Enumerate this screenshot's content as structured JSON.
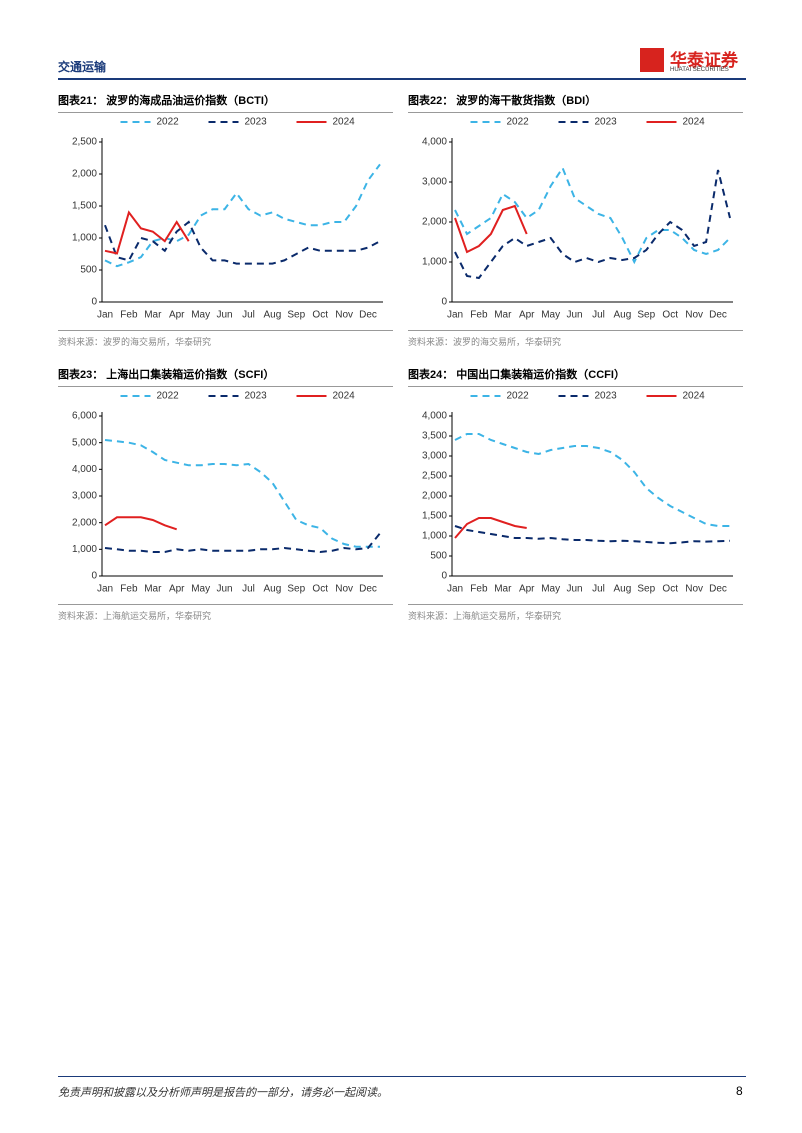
{
  "header": {
    "section": "交通运输",
    "logo": "华泰证券",
    "logo_en": "HUATAI SECURITIES"
  },
  "chart_data": [
    {
      "type": "line",
      "title": "图表21： 波罗的海成品油运价指数（BCTI）",
      "source": "资料来源：波罗的海交易所，华泰研究",
      "legend": "top",
      "grid": false,
      "categories": [
        "Jan",
        null,
        "Feb",
        null,
        "Mar",
        null,
        "Apr",
        null,
        "May",
        null,
        "Jun",
        null,
        "Jul",
        null,
        "Aug",
        null,
        "Sep",
        null,
        "Oct",
        null,
        "Nov",
        null,
        "Dec",
        null
      ],
      "ylim": [
        0,
        2500
      ],
      "yticks": [
        0,
        500,
        {
          "value": 1000,
          "label": "1,000"
        },
        {
          "value": 1500,
          "label": "1,500"
        },
        {
          "value": 2000,
          "label": "2,000"
        },
        {
          "value": 2500,
          "label": "2,500"
        }
      ],
      "series": [
        {
          "name": "2022",
          "color": "#3cb4e6",
          "style": "dashed",
          "values": [
            650,
            560,
            620,
            700,
            950,
            1000,
            950,
            1050,
            1350,
            1450,
            1450,
            1700,
            1450,
            1350,
            1400,
            1300,
            1250,
            1200,
            1200,
            1250,
            1250,
            1500,
            1900,
            2150
          ]
        },
        {
          "name": "2023",
          "color": "#0a2a6b",
          "style": "dashed",
          "values": [
            1200,
            700,
            650,
            1000,
            950,
            800,
            1100,
            1250,
            850,
            650,
            650,
            600,
            600,
            600,
            600,
            650,
            750,
            850,
            800,
            800,
            800,
            800,
            850,
            950
          ]
        },
        {
          "name": "2024",
          "color": "#e02020",
          "style": "solid",
          "values": [
            800,
            760,
            1400,
            1150,
            1100,
            950,
            1250,
            950,
            null,
            null,
            null,
            null,
            null,
            null,
            null,
            null,
            null,
            null,
            null,
            null,
            null,
            null,
            null,
            null
          ]
        }
      ]
    },
    {
      "type": "line",
      "title": "图表22： 波罗的海干散货指数（BDI）",
      "source": "资料来源：波罗的海交易所，华泰研究",
      "legend": "top",
      "grid": false,
      "categories": [
        "Jan",
        null,
        "Feb",
        null,
        "Mar",
        null,
        "Apr",
        null,
        "May",
        null,
        "Jun",
        null,
        "Jul",
        null,
        "Aug",
        null,
        "Sep",
        null,
        "Oct",
        null,
        "Nov",
        null,
        "Dec",
        null
      ],
      "ylim": [
        0,
        4000
      ],
      "yticks": [
        0,
        {
          "value": 1000,
          "label": "1,000"
        },
        {
          "value": 2000,
          "label": "2,000"
        },
        {
          "value": 3000,
          "label": "3,000"
        },
        {
          "value": 4000,
          "label": "4,000"
        }
      ],
      "series": [
        {
          "name": "2022",
          "color": "#3cb4e6",
          "style": "dashed",
          "values": [
            2300,
            1700,
            1900,
            2100,
            2700,
            2500,
            2100,
            2300,
            2900,
            3350,
            2600,
            2400,
            2200,
            2100,
            1600,
            1000,
            1600,
            1800,
            1800,
            1600,
            1300,
            1200,
            1300,
            1600
          ]
        },
        {
          "name": "2023",
          "color": "#0a2a6b",
          "style": "dashed",
          "values": [
            1250,
            650,
            600,
            1000,
            1400,
            1600,
            1400,
            1500,
            1600,
            1200,
            1000,
            1100,
            1000,
            1100,
            1050,
            1100,
            1300,
            1700,
            2000,
            1800,
            1400,
            1500,
            3300,
            2100
          ]
        },
        {
          "name": "2024",
          "color": "#e02020",
          "style": "solid",
          "values": [
            2100,
            1250,
            1400,
            1700,
            2300,
            2400,
            1700,
            null,
            null,
            null,
            null,
            null,
            null,
            null,
            null,
            null,
            null,
            null,
            null,
            null,
            null,
            null,
            null,
            null
          ]
        }
      ]
    },
    {
      "type": "line",
      "title": "图表23： 上海出口集装箱运价指数（SCFI）",
      "source": "资料来源：上海航运交易所，华泰研究",
      "legend": "top",
      "grid": false,
      "categories": [
        "Jan",
        null,
        "Feb",
        null,
        "Mar",
        null,
        "Apr",
        null,
        "May",
        null,
        "Jun",
        null,
        "Jul",
        null,
        "Aug",
        null,
        "Sep",
        null,
        "Oct",
        null,
        "Nov",
        null,
        "Dec",
        null
      ],
      "ylim": [
        0,
        6000
      ],
      "yticks": [
        0,
        {
          "value": 1000,
          "label": "1,000"
        },
        {
          "value": 2000,
          "label": "2,000"
        },
        {
          "value": 3000,
          "label": "3,000"
        },
        {
          "value": 4000,
          "label": "4,000"
        },
        {
          "value": 5000,
          "label": "5,000"
        },
        {
          "value": 6000,
          "label": "6,000"
        }
      ],
      "series": [
        {
          "name": "2022",
          "color": "#3cb4e6",
          "style": "dashed",
          "values": [
            5100,
            5050,
            5000,
            4900,
            4650,
            4350,
            4250,
            4150,
            4150,
            4200,
            4200,
            4150,
            4200,
            3900,
            3500,
            2800,
            2100,
            1900,
            1800,
            1400,
            1200,
            1100,
            1100,
            1100
          ]
        },
        {
          "name": "2023",
          "color": "#0a2a6b",
          "style": "dashed",
          "values": [
            1050,
            1000,
            950,
            950,
            900,
            900,
            1000,
            950,
            1000,
            950,
            950,
            950,
            950,
            1000,
            1000,
            1050,
            1000,
            950,
            900,
            950,
            1050,
            1000,
            1050,
            1600
          ]
        },
        {
          "name": "2024",
          "color": "#e02020",
          "style": "solid",
          "values": [
            1900,
            2200,
            2200,
            2200,
            2100,
            1900,
            1750,
            null,
            null,
            null,
            null,
            null,
            null,
            null,
            null,
            null,
            null,
            null,
            null,
            null,
            null,
            null,
            null,
            null
          ]
        }
      ]
    },
    {
      "type": "line",
      "title": "图表24： 中国出口集装箱运价指数（CCFI）",
      "source": "资料来源：上海航运交易所，华泰研究",
      "legend": "top",
      "grid": false,
      "categories": [
        "Jan",
        null,
        "Feb",
        null,
        "Mar",
        null,
        "Apr",
        null,
        "May",
        null,
        "Jun",
        null,
        "Jul",
        null,
        "Aug",
        null,
        "Sep",
        null,
        "Oct",
        null,
        "Nov",
        null,
        "Dec",
        null
      ],
      "ylim": [
        0,
        4000
      ],
      "yticks": [
        0,
        500,
        {
          "value": 1000,
          "label": "1,000"
        },
        {
          "value": 1500,
          "label": "1,500"
        },
        {
          "value": 2000,
          "label": "2,000"
        },
        {
          "value": 2500,
          "label": "2,500"
        },
        {
          "value": 3000,
          "label": "3,000"
        },
        {
          "value": 3500,
          "label": "3,500"
        },
        {
          "value": 4000,
          "label": "4,000"
        }
      ],
      "series": [
        {
          "name": "2022",
          "color": "#3cb4e6",
          "style": "dashed",
          "values": [
            3400,
            3550,
            3550,
            3400,
            3300,
            3200,
            3100,
            3050,
            3150,
            3200,
            3250,
            3250,
            3200,
            3100,
            2900,
            2600,
            2200,
            1950,
            1750,
            1600,
            1450,
            1300,
            1250,
            1250
          ]
        },
        {
          "name": "2023",
          "color": "#0a2a6b",
          "style": "dashed",
          "values": [
            1250,
            1150,
            1100,
            1050,
            1000,
            950,
            950,
            930,
            950,
            920,
            900,
            900,
            880,
            870,
            880,
            870,
            850,
            830,
            820,
            840,
            870,
            860,
            870,
            880
          ]
        },
        {
          "name": "2024",
          "color": "#e02020",
          "style": "solid",
          "values": [
            950,
            1300,
            1450,
            1450,
            1350,
            1250,
            1200,
            null,
            null,
            null,
            null,
            null,
            null,
            null,
            null,
            null,
            null,
            null,
            null,
            null,
            null,
            null,
            null,
            null
          ]
        }
      ]
    }
  ],
  "footer": {
    "disclaimer": "免责声明和披露以及分析师声明是报告的一部分，请务必一起阅读。",
    "page": "8"
  }
}
